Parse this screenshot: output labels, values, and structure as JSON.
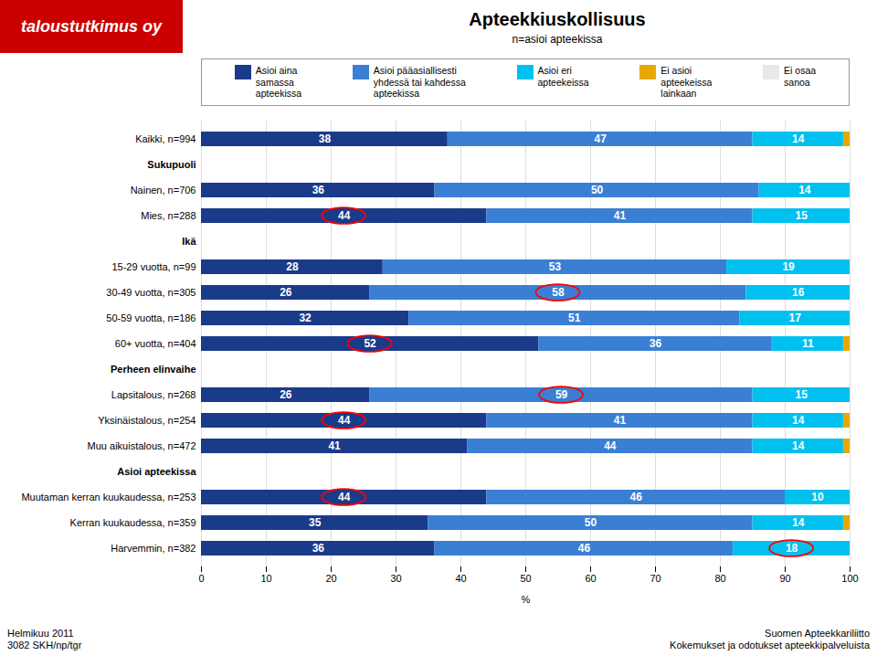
{
  "chart_data": {
    "type": "bar",
    "orientation": "horizontal",
    "stacked": true,
    "title": "Apteekkiuskollisuus",
    "subtitle": "n=asioi apteekissa",
    "logo": {
      "text": "taloustutkimus oy",
      "color": "#cc0000"
    },
    "footer_left": "Helmikuu 2011\n3082 SKH/np/tgr",
    "footer_right": "Suomen Apteekkariliitto\nKokemukset ja odotukset apteekkipalveluista",
    "xlabel": "%",
    "xlim": [
      0,
      100
    ],
    "xticks": [
      0,
      10,
      20,
      30,
      40,
      50,
      60,
      70,
      80,
      90,
      100
    ],
    "grid": true,
    "legend": "top",
    "data_labels": true,
    "categories": [
      "Kaikki, n=994",
      "Sukupuoli",
      "Nainen, n=706",
      "Mies, n=288",
      "Ikä",
      "15-29 vuotta, n=99",
      "30-49 vuotta, n=305",
      "50-59 vuotta, n=186",
      "60+ vuotta, n=404",
      "Perheen elinvaihe",
      "Lapsitalous, n=268",
      "Yksinäistalous, n=254",
      "Muu aikuistalous, n=472",
      "Asioi apteekissa",
      "Muutaman kerran kuukaudessa, n=253",
      "Kerran kuukaudessa, n=359",
      "Harvemmin, n=382"
    ],
    "series": [
      {
        "name": "Asioi aina\nsamassa\napteekissa",
        "color": "#1a3a8a",
        "values": [
          38,
          0,
          36,
          44,
          0,
          28,
          26,
          32,
          52,
          0,
          26,
          44,
          41,
          0,
          44,
          35,
          36
        ],
        "value_labels": [
          "38",
          null,
          "36",
          "44",
          null,
          "28",
          "26",
          "32",
          "52",
          null,
          "26",
          "44",
          "41",
          null,
          "44",
          "35",
          "36"
        ]
      },
      {
        "name": "Asioi pääasiallisesti\nyhdessä tai kahdessa\napteekissa",
        "color": "#3a7fd4",
        "values": [
          47,
          0,
          50,
          41,
          0,
          53,
          58,
          51,
          36,
          0,
          59,
          41,
          44,
          0,
          46,
          50,
          46
        ],
        "value_labels": [
          "47",
          null,
          "50",
          "41",
          null,
          "53",
          "58",
          "51",
          "36",
          null,
          "59",
          "41",
          "44",
          null,
          "46",
          "50",
          "46"
        ]
      },
      {
        "name": "Asioi eri\napteekeissa",
        "color": "#00c0f0",
        "values": [
          14,
          0,
          14,
          15,
          0,
          19,
          16,
          17,
          11,
          0,
          15,
          14,
          14,
          0,
          10,
          14,
          18
        ],
        "value_labels": [
          "14",
          null,
          "14",
          "15",
          null,
          "19",
          "16",
          "17",
          "11",
          null,
          "15",
          "14",
          "14",
          null,
          "10",
          "14",
          "18"
        ]
      },
      {
        "name": "Ei asioi\napteekeissa\nlainkaan",
        "color": "#e8a800",
        "values": [
          1,
          0,
          0,
          0,
          0,
          0,
          0,
          0,
          1,
          0,
          0,
          1,
          1,
          0,
          0,
          1,
          0
        ],
        "value_labels": [
          null,
          null,
          null,
          null,
          null,
          null,
          null,
          null,
          null,
          null,
          null,
          null,
          null,
          null,
          null,
          null,
          null
        ]
      },
      {
        "name": "Ei osaa\nsanoa",
        "color": "#e8e8e8",
        "values": [
          0,
          0,
          0,
          0,
          0,
          0,
          0,
          0,
          0,
          0,
          0,
          0,
          0,
          0,
          0,
          0,
          0
        ],
        "value_labels": [
          null,
          null,
          null,
          null,
          null,
          null,
          null,
          null,
          null,
          null,
          null,
          null,
          null,
          null,
          null,
          null,
          null
        ]
      }
    ],
    "highlight": [
      {
        "category": "Mies, n=288",
        "series": "Asioi aina\nsamassa\napteekissa",
        "color": "red"
      },
      {
        "category": "30-49 vuotta, n=305",
        "series": "Asioi pääasiallisesti\nyhdessä tai kahdessa\napteekissa",
        "color": "red"
      },
      {
        "category": "60+ vuotta, n=404",
        "series": "Asioi aina\nsamassa\napteekissa",
        "color": "red"
      },
      {
        "category": "Lapsitalous, n=268",
        "series": "Asioi pääasiallisesti\nyhdessä tai kahdessa\napteekissa",
        "color": "red"
      },
      {
        "category": "Yksinäistalous, n=254",
        "series": "Asioi aina\nsamassa\napteekissa",
        "color": "red"
      },
      {
        "category": "Muutaman kerran kuukaudessa, n=253",
        "series": "Asioi aina\nsamassa\napteekissa",
        "color": "red"
      },
      {
        "category": "Harvemmin, n=382",
        "series": "Asioi eri\napteekeissa",
        "color": "red"
      }
    ]
  }
}
